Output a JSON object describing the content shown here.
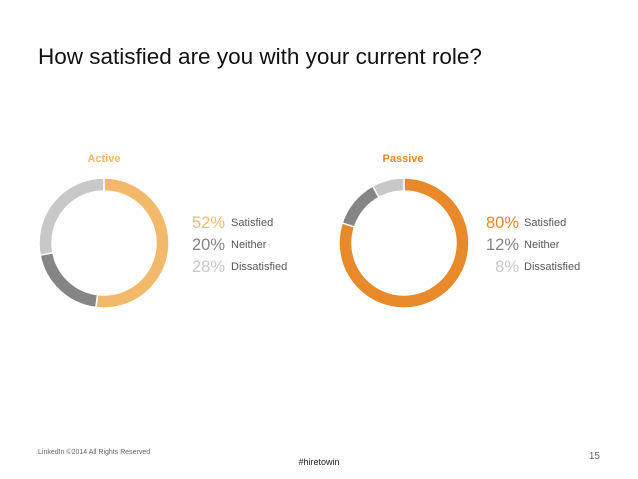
{
  "title": "How satisfied are you with your current role?",
  "colors": {
    "active_satisfied": "#F3B96B",
    "passive_satisfied": "#E8892A",
    "neither": "#858585",
    "dissatisfied": "#C8C8C8",
    "label_text": "#595959"
  },
  "chart_data": [
    {
      "type": "pie",
      "style": "donut",
      "title": "Active",
      "categories": [
        "Satisfied",
        "Neither",
        "Dissatisfied"
      ],
      "values": [
        52,
        20,
        28
      ],
      "labels": [
        "52%",
        "20%",
        "28%"
      ],
      "colors": [
        "#F3B96B",
        "#858585",
        "#C8C8C8"
      ],
      "title_color": "#F3B96B"
    },
    {
      "type": "pie",
      "style": "donut",
      "title": "Passive",
      "categories": [
        "Satisfied",
        "Neither",
        "Dissatisfied"
      ],
      "values": [
        80,
        12,
        8
      ],
      "labels": [
        "80%",
        "12%",
        "8%"
      ],
      "colors": [
        "#E8892A",
        "#858585",
        "#C8C8C8"
      ],
      "title_color": "#E8892A"
    }
  ],
  "footer": {
    "copyright": "LinkedIn ©2014 All Rights Reserved",
    "hashtag": "#hiretowin",
    "page_number": "15"
  }
}
